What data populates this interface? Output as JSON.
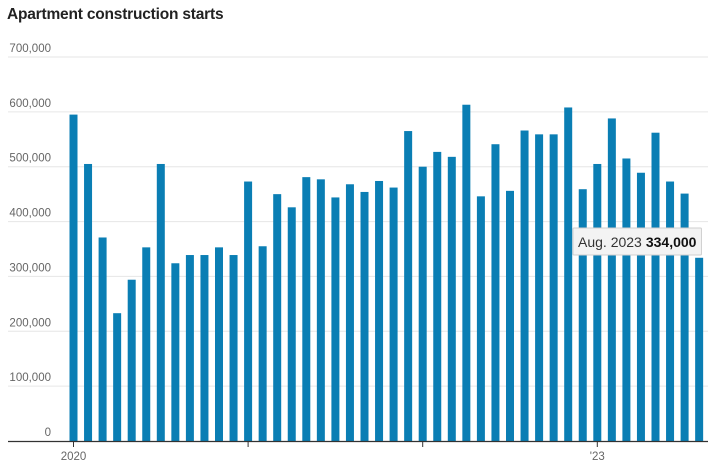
{
  "chart_data": {
    "type": "bar",
    "title": "Apartment construction starts",
    "xlabel": "",
    "ylabel": "",
    "ylim": [
      0,
      700000
    ],
    "yticks": [
      0,
      100000,
      200000,
      300000,
      400000,
      500000,
      600000,
      700000
    ],
    "ytick_labels": [
      "0",
      "100,000",
      "200,000",
      "300,000",
      "400,000",
      "500,000",
      "600,000",
      "700,000"
    ],
    "xtick_labels": [
      {
        "label": "2020",
        "bar_index": 0
      },
      {
        "label": "",
        "bar_index": 12
      },
      {
        "label": "",
        "bar_index": 24
      },
      {
        "label": "'23",
        "bar_index": 36
      }
    ],
    "grid": true,
    "bar_color": "#0a7eb4",
    "series": [
      {
        "values": [
          595000,
          505000,
          371000,
          233000,
          294000,
          353000,
          505000,
          324000,
          339000,
          339000,
          353000,
          339000,
          473000,
          355000,
          450000,
          426000,
          481000,
          477000,
          444000,
          468000,
          454000,
          474000,
          462000,
          565000,
          500000,
          527000,
          518000,
          613000,
          446000,
          541000,
          456000,
          566000,
          559000,
          559000,
          608000,
          459000,
          505000,
          588000,
          515000,
          489000,
          562000,
          473000,
          451000,
          334000
        ]
      }
    ],
    "highlight": {
      "bar_index": 43,
      "date_label": "Aug. 2023",
      "value_label": "334,000"
    }
  }
}
